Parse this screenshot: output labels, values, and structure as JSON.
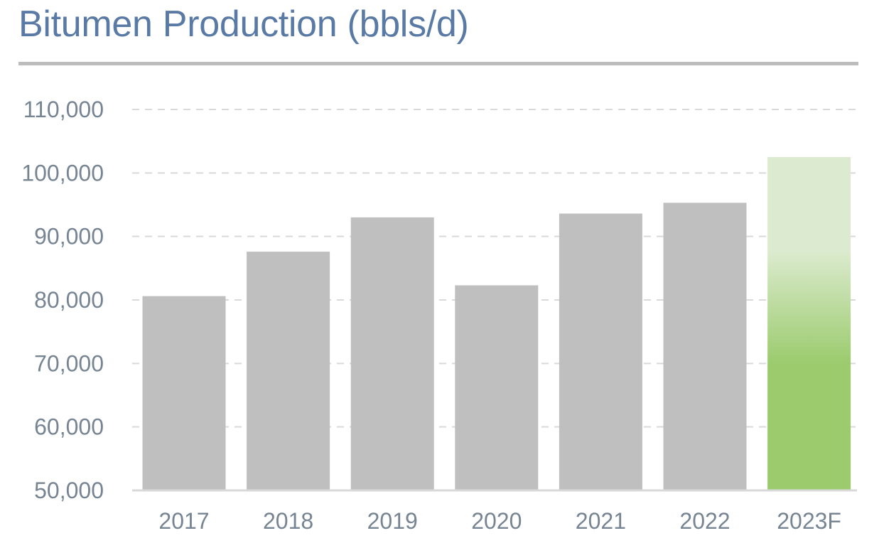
{
  "chart_data": {
    "type": "bar",
    "title": "Bitumen Production (bbls/d)",
    "xlabel": "",
    "ylabel": "",
    "categories": [
      "2017",
      "2018",
      "2019",
      "2020",
      "2021",
      "2022",
      "2023F"
    ],
    "values": [
      80600,
      87600,
      93000,
      82300,
      93600,
      95300,
      102500
    ],
    "ylim": [
      50000,
      110000
    ],
    "yticks": [
      50000,
      60000,
      70000,
      80000,
      90000,
      100000,
      110000
    ],
    "ytick_labels": [
      "50,000",
      "60,000",
      "70,000",
      "80,000",
      "90,000",
      "100,000",
      "110,000"
    ],
    "grid": "horizontal-dashed",
    "legend": "none",
    "colors": {
      "actual_bar": "#bfbfbf",
      "forecast_bar_top": "#dcebcf",
      "forecast_bar_bottom": "#9bcb6d",
      "title": "#5a7aa6",
      "tick_text": "#778593",
      "gridline": "#d9d9d9",
      "axis_line": "#d9d9d9"
    },
    "forecast_categories": [
      "2023F"
    ]
  }
}
